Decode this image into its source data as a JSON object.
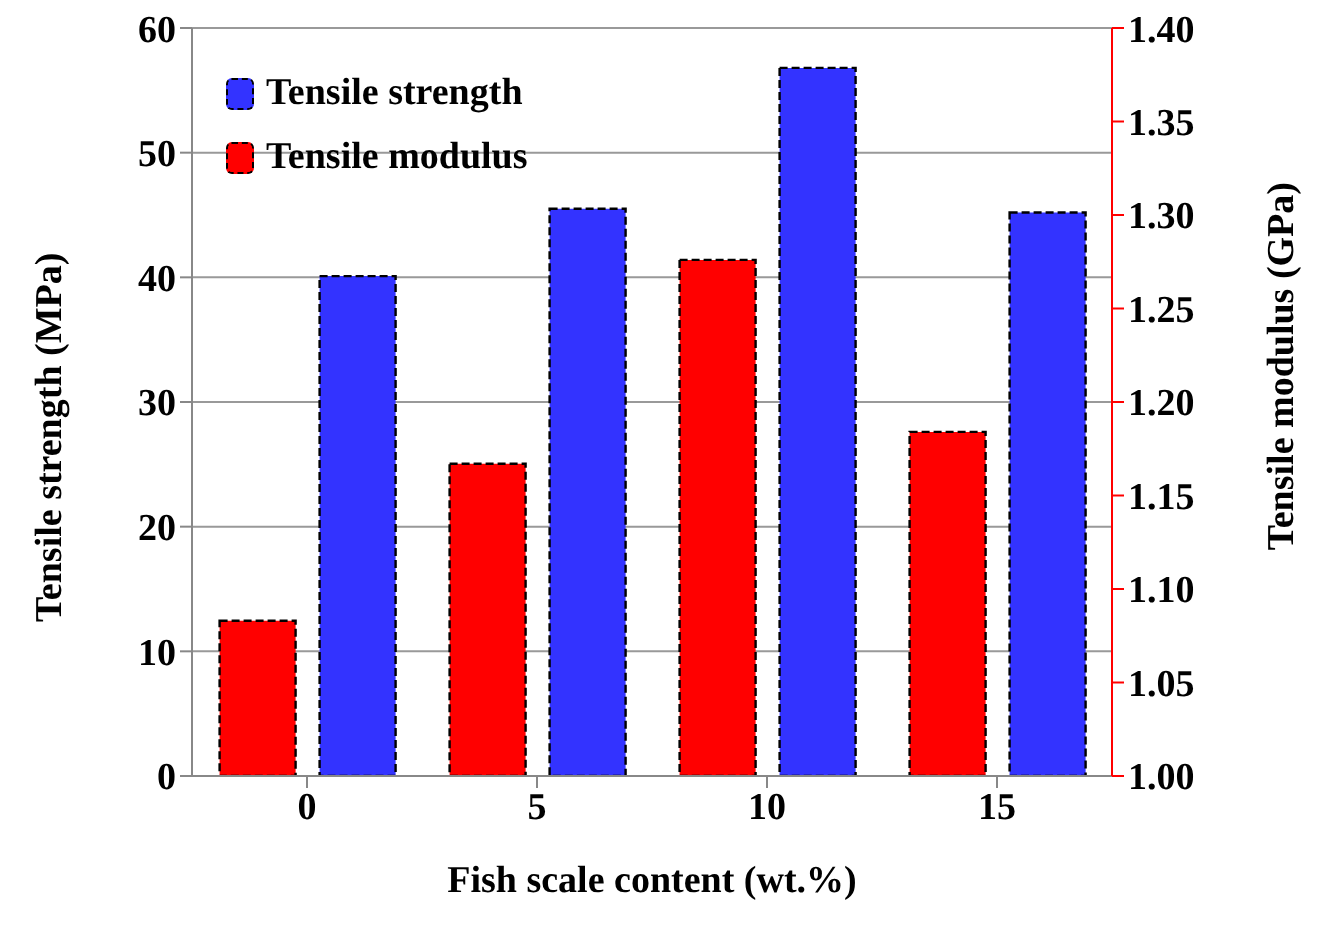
{
  "chart_data": {
    "type": "bar",
    "xlabel": "Fish scale content (wt.%)",
    "ylabel": "Tensile strength (MPa)",
    "y2label": "Tensile modulus (GPa)",
    "categories": [
      "0",
      "5",
      "10",
      "15"
    ],
    "series": [
      {
        "name": "Tensile strength",
        "color": "#3333ff",
        "values": [
          40.1,
          45.5,
          56.8,
          45.2
        ]
      },
      {
        "name": "Tensile modulus",
        "color": "#ff0000",
        "axis": "y2",
        "values": [
          1.083,
          1.167,
          1.276,
          1.184
        ]
      }
    ],
    "ylim": [
      0,
      60
    ],
    "yticks": [
      0,
      10,
      20,
      30,
      40,
      50,
      60
    ],
    "y2lim": [
      1.0,
      1.4
    ],
    "y2ticks": [
      {
        "value": 1.0,
        "label": "1.00"
      },
      {
        "value": 1.05,
        "label": "1.05"
      },
      {
        "value": 1.1,
        "label": "1.10"
      },
      {
        "value": 1.15,
        "label": "1.15"
      },
      {
        "value": 1.2,
        "label": "1.20"
      },
      {
        "value": 1.25,
        "label": "1.25"
      },
      {
        "value": 1.3,
        "label": "1.30"
      },
      {
        "value": 1.35,
        "label": "1.35"
      },
      {
        "value": 1.4,
        "label": "1.40"
      }
    ],
    "grid": "y",
    "legend": "top left"
  }
}
